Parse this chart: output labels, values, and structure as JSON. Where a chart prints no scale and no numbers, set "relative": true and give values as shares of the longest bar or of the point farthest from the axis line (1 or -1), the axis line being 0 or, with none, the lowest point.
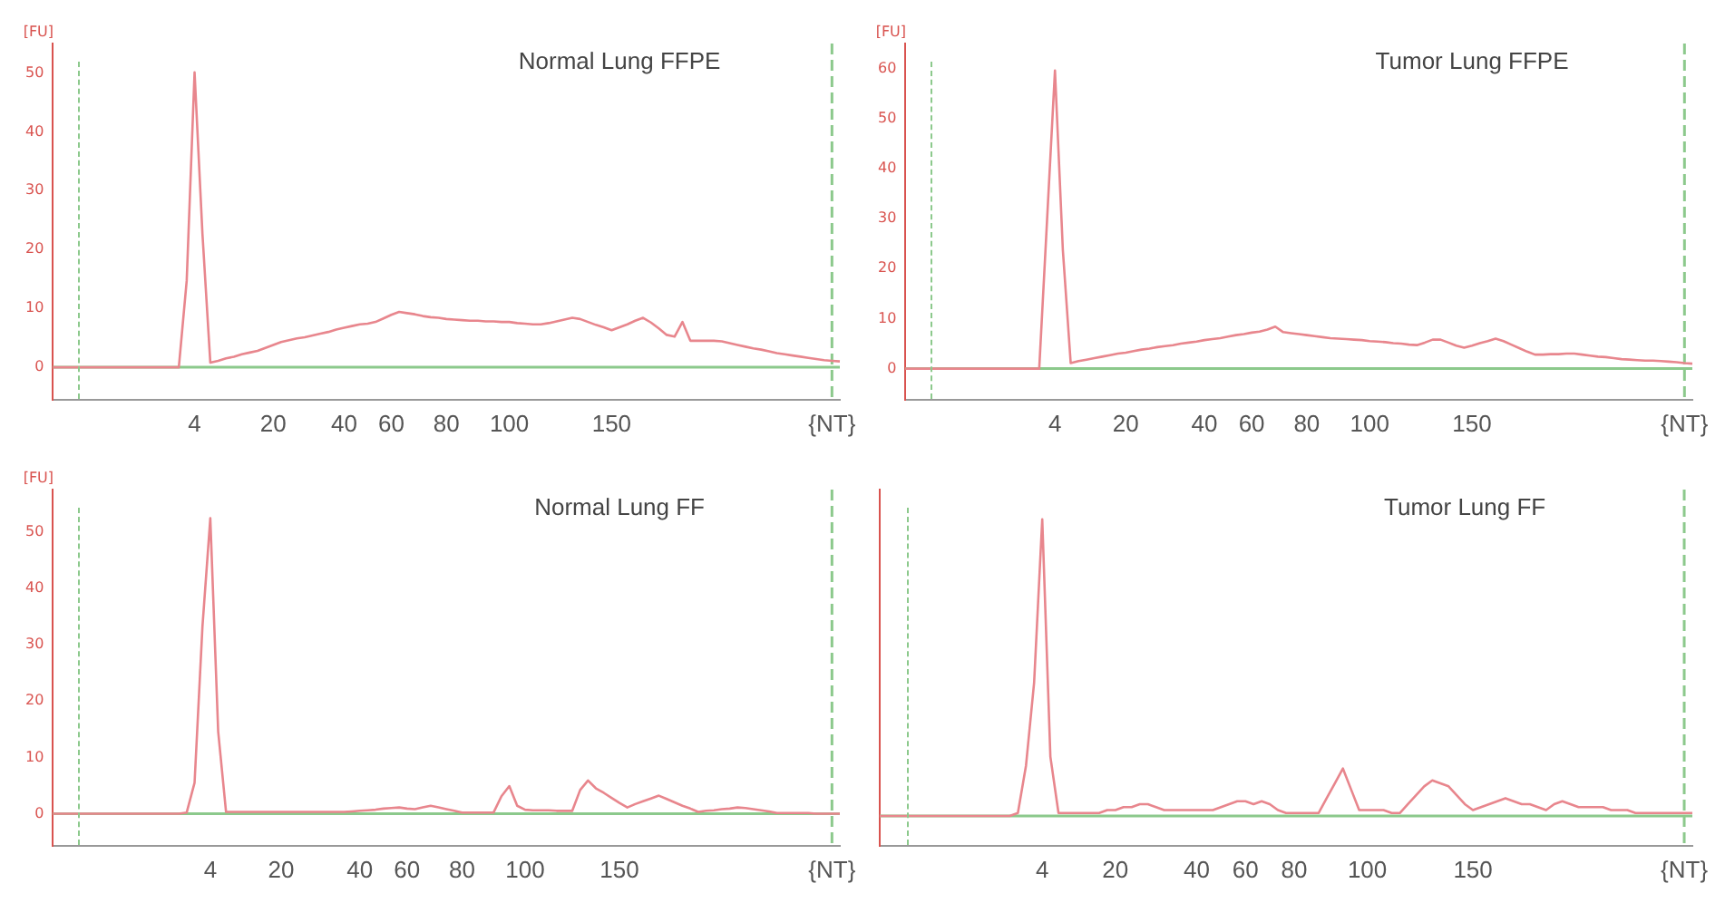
{
  "chart_data": [
    {
      "type": "line",
      "title": "Normal Lung FFPE",
      "ylabel": "[FU]",
      "legend": false,
      "grid": false,
      "marker": "none",
      "line_style": "solid",
      "categories": [
        null,
        null,
        null,
        null,
        null,
        null,
        null,
        null,
        null,
        null,
        null,
        null,
        null,
        null,
        null,
        null,
        null,
        null,
        "4",
        null,
        null,
        null,
        null,
        null,
        null,
        null,
        null,
        null,
        "20",
        null,
        null,
        null,
        null,
        null,
        null,
        null,
        null,
        "40",
        null,
        null,
        null,
        null,
        null,
        "60",
        null,
        null,
        null,
        null,
        null,
        null,
        "80",
        null,
        null,
        null,
        null,
        null,
        null,
        null,
        "100",
        null,
        null,
        null,
        null,
        null,
        null,
        null,
        null,
        null,
        null,
        null,
        null,
        "150",
        null,
        null,
        null,
        null,
        null,
        null,
        null,
        null,
        null,
        null,
        null,
        null,
        null,
        null,
        null,
        null,
        null,
        null,
        null,
        null,
        null,
        null,
        null,
        null,
        null,
        null,
        null,
        "{NT}",
        null
      ],
      "ylim": [
        -5.5,
        55
      ],
      "yticks": [
        0,
        10,
        20,
        30,
        40,
        50
      ],
      "ref_lines": [
        {
          "axis": "x",
          "value": "{NT}",
          "color": "#8cc98c",
          "line_style": "dashed"
        },
        {
          "axis": "y",
          "value": 0,
          "color": "#8cc98c",
          "line_style": "solid"
        }
      ],
      "series": [
        {
          "color": "#e8868d",
          "values": [
            0,
            0,
            0,
            0,
            0,
            0,
            0,
            0,
            0,
            0,
            0,
            0,
            0,
            0,
            0,
            0,
            0,
            14.7,
            50.1,
            22.7,
            0.8,
            1.1,
            1.5,
            1.8,
            2.2,
            2.5,
            2.8,
            3.3,
            3.8,
            4.3,
            4.6,
            4.9,
            5.1,
            5.4,
            5.7,
            6.0,
            6.4,
            6.7,
            7.0,
            7.3,
            7.4,
            7.7,
            8.3,
            8.9,
            9.4,
            9.2,
            9.0,
            8.7,
            8.5,
            8.4,
            8.2,
            8.1,
            8.0,
            7.9,
            7.9,
            7.8,
            7.8,
            7.7,
            7.7,
            7.5,
            7.4,
            7.3,
            7.3,
            7.5,
            7.8,
            8.1,
            8.4,
            8.2,
            7.7,
            7.2,
            6.8,
            6.3,
            6.8,
            7.3,
            7.9,
            8.4,
            7.6,
            6.6,
            5.5,
            5.2,
            7.7,
            4.5,
            4.5,
            4.5,
            4.5,
            4.4,
            4.1,
            3.8,
            3.5,
            3.2,
            3.0,
            2.7,
            2.4,
            2.2,
            2.0,
            1.8,
            1.6,
            1.4,
            1.2,
            1.1,
            1.0
          ]
        }
      ]
    },
    {
      "type": "line",
      "title": "Tumor Lung FFPE",
      "ylabel": "[FU]",
      "legend": false,
      "grid": false,
      "marker": "none",
      "line_style": "solid",
      "categories": [
        null,
        null,
        null,
        null,
        null,
        null,
        null,
        null,
        null,
        null,
        null,
        null,
        null,
        null,
        null,
        null,
        null,
        null,
        null,
        "4",
        null,
        null,
        null,
        null,
        null,
        null,
        null,
        null,
        "20",
        null,
        null,
        null,
        null,
        null,
        null,
        null,
        null,
        null,
        "40",
        null,
        null,
        null,
        null,
        null,
        "60",
        null,
        null,
        null,
        null,
        null,
        null,
        "80",
        null,
        null,
        null,
        null,
        null,
        null,
        null,
        "100",
        null,
        null,
        null,
        null,
        null,
        null,
        null,
        null,
        null,
        null,
        null,
        null,
        "150",
        null,
        null,
        null,
        null,
        null,
        null,
        null,
        null,
        null,
        null,
        null,
        null,
        null,
        null,
        null,
        null,
        null,
        null,
        null,
        null,
        null,
        null,
        null,
        null,
        null,
        null,
        "{NT}",
        null
      ],
      "ylim": [
        -6.2,
        65
      ],
      "yticks": [
        0,
        10,
        20,
        30,
        40,
        50,
        60
      ],
      "ref_lines": [
        {
          "axis": "x",
          "value": "{NT}",
          "color": "#8cc98c",
          "line_style": "dashed"
        },
        {
          "axis": "y",
          "value": 0,
          "color": "#8cc98c",
          "line_style": "solid"
        }
      ],
      "series": [
        {
          "color": "#e8868d",
          "values": [
            0,
            0,
            0,
            0,
            0,
            0,
            0,
            0,
            0,
            0,
            0,
            0,
            0,
            0,
            0,
            0,
            0,
            0,
            29.8,
            59.6,
            23.8,
            1.1,
            1.5,
            1.8,
            2.1,
            2.4,
            2.7,
            3.0,
            3.2,
            3.5,
            3.8,
            4.0,
            4.3,
            4.5,
            4.7,
            5.0,
            5.2,
            5.4,
            5.7,
            5.9,
            6.1,
            6.4,
            6.7,
            6.9,
            7.2,
            7.4,
            7.8,
            8.4,
            7.3,
            7.1,
            6.9,
            6.7,
            6.5,
            6.3,
            6.1,
            6.0,
            5.9,
            5.8,
            5.7,
            5.5,
            5.4,
            5.3,
            5.1,
            5.0,
            4.8,
            4.7,
            5.2,
            5.8,
            5.8,
            5.2,
            4.6,
            4.2,
            4.6,
            5.1,
            5.5,
            6.0,
            5.5,
            4.8,
            4.1,
            3.4,
            2.8,
            2.8,
            2.9,
            2.9,
            3.0,
            3.0,
            2.8,
            2.6,
            2.4,
            2.3,
            2.1,
            1.9,
            1.8,
            1.7,
            1.6,
            1.6,
            1.5,
            1.4,
            1.3,
            1.1,
            1.0
          ]
        }
      ]
    },
    {
      "type": "line",
      "title": "Normal Lung FF",
      "ylabel": "[FU]",
      "legend": false,
      "grid": false,
      "marker": "none",
      "line_style": "solid",
      "categories": [
        null,
        null,
        null,
        null,
        null,
        null,
        null,
        null,
        null,
        null,
        null,
        null,
        null,
        null,
        null,
        null,
        null,
        null,
        null,
        null,
        "4",
        null,
        null,
        null,
        null,
        null,
        null,
        null,
        null,
        "20",
        null,
        null,
        null,
        null,
        null,
        null,
        null,
        null,
        null,
        "40",
        null,
        null,
        null,
        null,
        null,
        "60",
        null,
        null,
        null,
        null,
        null,
        null,
        "80",
        null,
        null,
        null,
        null,
        null,
        null,
        null,
        "100",
        null,
        null,
        null,
        null,
        null,
        null,
        null,
        null,
        null,
        null,
        null,
        "150",
        null,
        null,
        null,
        null,
        null,
        null,
        null,
        null,
        null,
        null,
        null,
        null,
        null,
        null,
        null,
        null,
        null,
        null,
        null,
        null,
        null,
        null,
        null,
        null,
        null,
        null,
        "{NT}",
        null
      ],
      "ylim": [
        -5.7,
        57.6
      ],
      "yticks": [
        0,
        10,
        20,
        30,
        40,
        50
      ],
      "ref_lines": [
        {
          "axis": "x",
          "value": "{NT}",
          "color": "#8cc98c",
          "line_style": "dashed"
        },
        {
          "axis": "y",
          "value": 0,
          "color": "#8cc98c",
          "line_style": "solid"
        }
      ],
      "series": [
        {
          "color": "#e8868d",
          "values": [
            0,
            0,
            0,
            0,
            0,
            0,
            0,
            0,
            0,
            0,
            0,
            0,
            0,
            0,
            0,
            0,
            0,
            0.2,
            5.5,
            33.2,
            52.5,
            14.6,
            0.3,
            0.3,
            0.3,
            0.3,
            0.3,
            0.3,
            0.3,
            0.3,
            0.3,
            0.3,
            0.3,
            0.3,
            0.3,
            0.3,
            0.3,
            0.3,
            0.4,
            0.5,
            0.6,
            0.7,
            0.9,
            1.0,
            1.1,
            0.9,
            0.8,
            1.1,
            1.4,
            1.1,
            0.8,
            0.5,
            0.2,
            0.2,
            0.2,
            0.2,
            0.2,
            3.1,
            4.9,
            1.4,
            0.7,
            0.6,
            0.6,
            0.6,
            0.5,
            0.5,
            0.5,
            4.2,
            5.9,
            4.5,
            3.7,
            2.8,
            1.9,
            1.1,
            1.7,
            2.2,
            2.7,
            3.2,
            2.6,
            2.0,
            1.4,
            0.9,
            0.3,
            0.5,
            0.6,
            0.8,
            0.9,
            1.1,
            1.0,
            0.8,
            0.6,
            0.4,
            0.1,
            0.1,
            0.1,
            0.1,
            0.1,
            0,
            0,
            0,
            0
          ]
        }
      ]
    },
    {
      "type": "line",
      "title": "Tumor Lung FF",
      "relative": true,
      "legend": false,
      "grid": false,
      "marker": "none",
      "line_style": "solid",
      "categories": [
        null,
        null,
        null,
        null,
        null,
        null,
        null,
        null,
        null,
        null,
        null,
        null,
        null,
        null,
        null,
        null,
        null,
        null,
        null,
        null,
        "4",
        null,
        null,
        null,
        null,
        null,
        null,
        null,
        null,
        "20",
        null,
        null,
        null,
        null,
        null,
        null,
        null,
        null,
        null,
        "40",
        null,
        null,
        null,
        null,
        null,
        "60",
        null,
        null,
        null,
        null,
        null,
        "80",
        null,
        null,
        null,
        null,
        null,
        null,
        null,
        null,
        "100",
        null,
        null,
        null,
        null,
        null,
        null,
        null,
        null,
        null,
        null,
        null,
        null,
        "150",
        null,
        null,
        null,
        null,
        null,
        null,
        null,
        null,
        null,
        null,
        null,
        null,
        null,
        null,
        null,
        null,
        null,
        null,
        null,
        null,
        null,
        null,
        null,
        null,
        null,
        "{NT}",
        null
      ],
      "ref_lines": [
        {
          "axis": "x",
          "value": "{NT}",
          "color": "#8cc98c",
          "line_style": "dashed"
        },
        {
          "axis": "y",
          "value": 0,
          "color": "#8cc98c",
          "line_style": "solid"
        }
      ],
      "series": [
        {
          "color": "#e8868d",
          "values": [
            0,
            0,
            0,
            0,
            0,
            0,
            0,
            0,
            0,
            0,
            0,
            0,
            0,
            0,
            0,
            0,
            0,
            0.01,
            0.17,
            0.45,
            1.0,
            0.2,
            0.01,
            0.01,
            0.01,
            0.01,
            0.01,
            0.01,
            0.02,
            0.02,
            0.03,
            0.03,
            0.04,
            0.04,
            0.03,
            0.02,
            0.02,
            0.02,
            0.02,
            0.02,
            0.02,
            0.02,
            0.03,
            0.04,
            0.05,
            0.05,
            0.04,
            0.05,
            0.04,
            0.02,
            0.01,
            0.01,
            0.01,
            0.01,
            0.01,
            0.06,
            0.11,
            0.16,
            0.09,
            0.02,
            0.02,
            0.02,
            0.02,
            0.01,
            0.01,
            0.04,
            0.07,
            0.1,
            0.12,
            0.11,
            0.1,
            0.07,
            0.04,
            0.02,
            0.03,
            0.04,
            0.05,
            0.06,
            0.05,
            0.04,
            0.04,
            0.03,
            0.02,
            0.04,
            0.05,
            0.04,
            0.03,
            0.03,
            0.03,
            0.03,
            0.02,
            0.02,
            0.02,
            0.01,
            0.01,
            0.01,
            0.01,
            0.01,
            0.01,
            0.01,
            0.01
          ]
        }
      ]
    }
  ]
}
